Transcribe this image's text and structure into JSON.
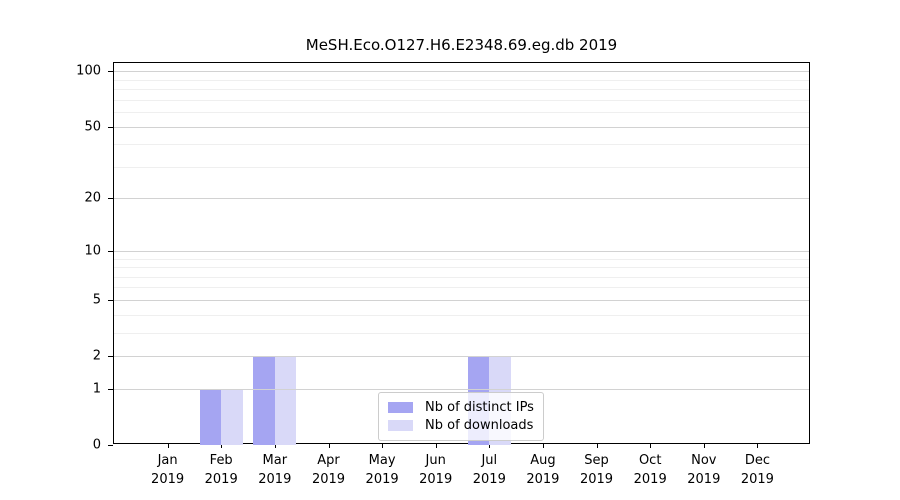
{
  "title": "MeSH.Eco.O127.H6.E2348.69.eg.db 2019",
  "chart_data": {
    "type": "bar",
    "months": [
      "Jan",
      "Feb",
      "Mar",
      "Apr",
      "May",
      "Jun",
      "Jul",
      "Aug",
      "Sep",
      "Oct",
      "Nov",
      "Dec"
    ],
    "year_label": "2019",
    "categories": [
      "Jan 2019",
      "Feb 2019",
      "Mar 2019",
      "Apr 2019",
      "May 2019",
      "Jun 2019",
      "Jul 2019",
      "Aug 2019",
      "Sep 2019",
      "Oct 2019",
      "Nov 2019",
      "Dec 2019"
    ],
    "series": [
      {
        "name": "Nb of distinct IPs",
        "color": "#a5a5f2",
        "values": [
          0,
          1,
          2,
          0,
          0,
          0,
          2,
          0,
          0,
          0,
          0,
          0
        ]
      },
      {
        "name": "Nb of downloads",
        "color": "#d9d9f8",
        "values": [
          0,
          1,
          2,
          0,
          0,
          0,
          2,
          0,
          0,
          0,
          0,
          0
        ]
      }
    ],
    "yscale": "log1p",
    "yticks": [
      0,
      1,
      2,
      5,
      10,
      20,
      50,
      100
    ],
    "minor_grid_values": [
      3,
      4,
      6,
      7,
      8,
      9,
      30,
      40,
      60,
      70,
      80,
      90
    ],
    "ylim": [
      0,
      110
    ],
    "grid": "horizontal",
    "legend_position": "bottom-center"
  }
}
